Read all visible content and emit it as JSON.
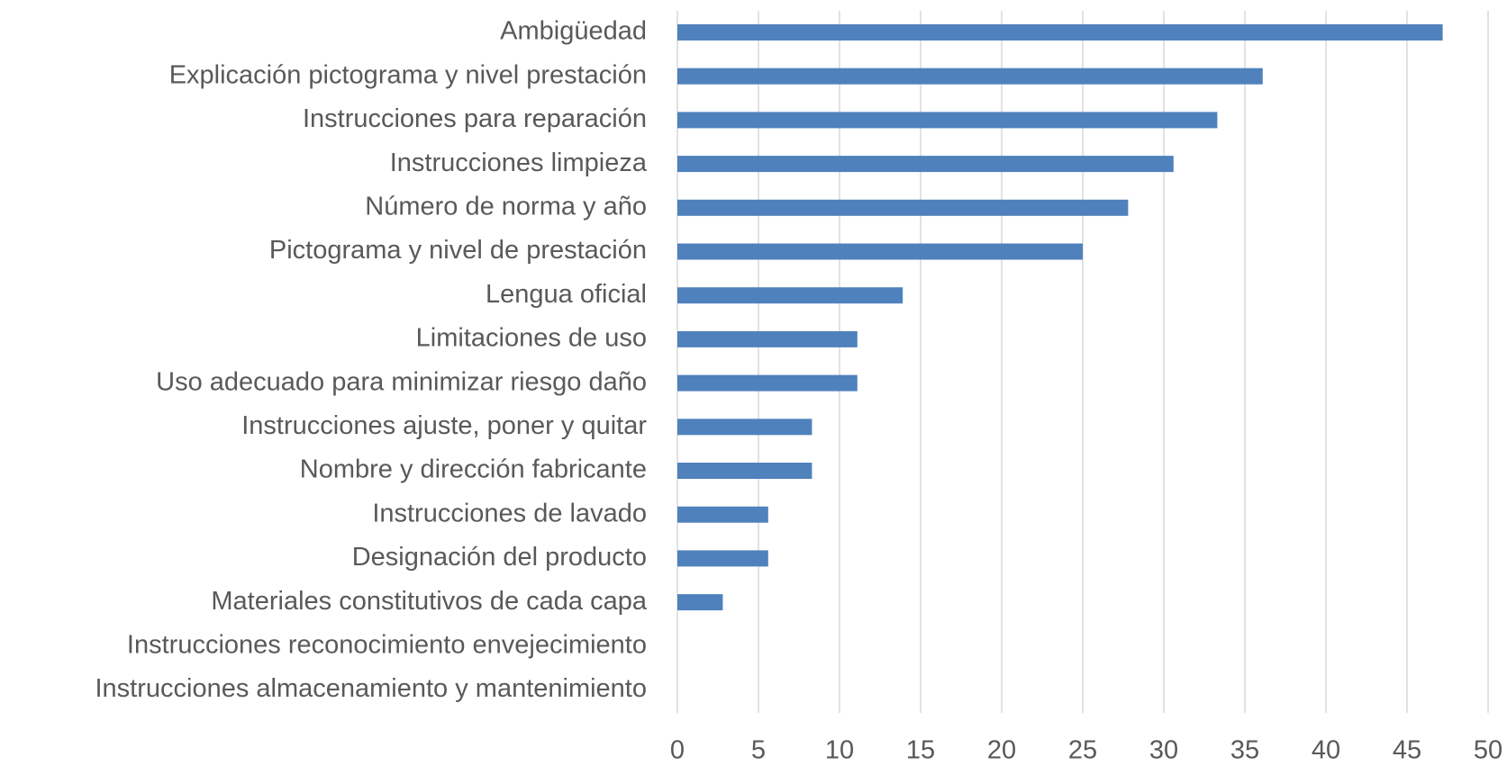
{
  "chart_data": {
    "type": "bar",
    "orientation": "horizontal",
    "categories": [
      "Ambigüedad",
      "Explicación pictograma y nivel prestación",
      "Instrucciones para reparación",
      "Instrucciones limpieza",
      "Número de norma y año",
      "Pictograma y nivel de prestación",
      "Lengua oficial",
      "Limitaciones de uso",
      "Uso adecuado para minimizar riesgo daño",
      "Instrucciones ajuste, poner y quitar",
      "Nombre y dirección fabricante",
      "Instrucciones de lavado",
      "Designación del producto",
      "Materiales constitutivos de cada capa",
      "Instrucciones reconocimiento envejecimiento",
      "Instrucciones almacenamiento y mantenimiento"
    ],
    "values": [
      47.2,
      36.1,
      33.3,
      30.6,
      27.8,
      25,
      13.9,
      11.1,
      11.1,
      8.3,
      8.3,
      5.6,
      5.6,
      2.8,
      0,
      0
    ],
    "color": "#4f81bd",
    "xlim": [
      0,
      50
    ],
    "xticks": [
      0,
      5,
      10,
      15,
      20,
      25,
      30,
      35,
      40,
      45,
      50
    ],
    "grid": true
  }
}
